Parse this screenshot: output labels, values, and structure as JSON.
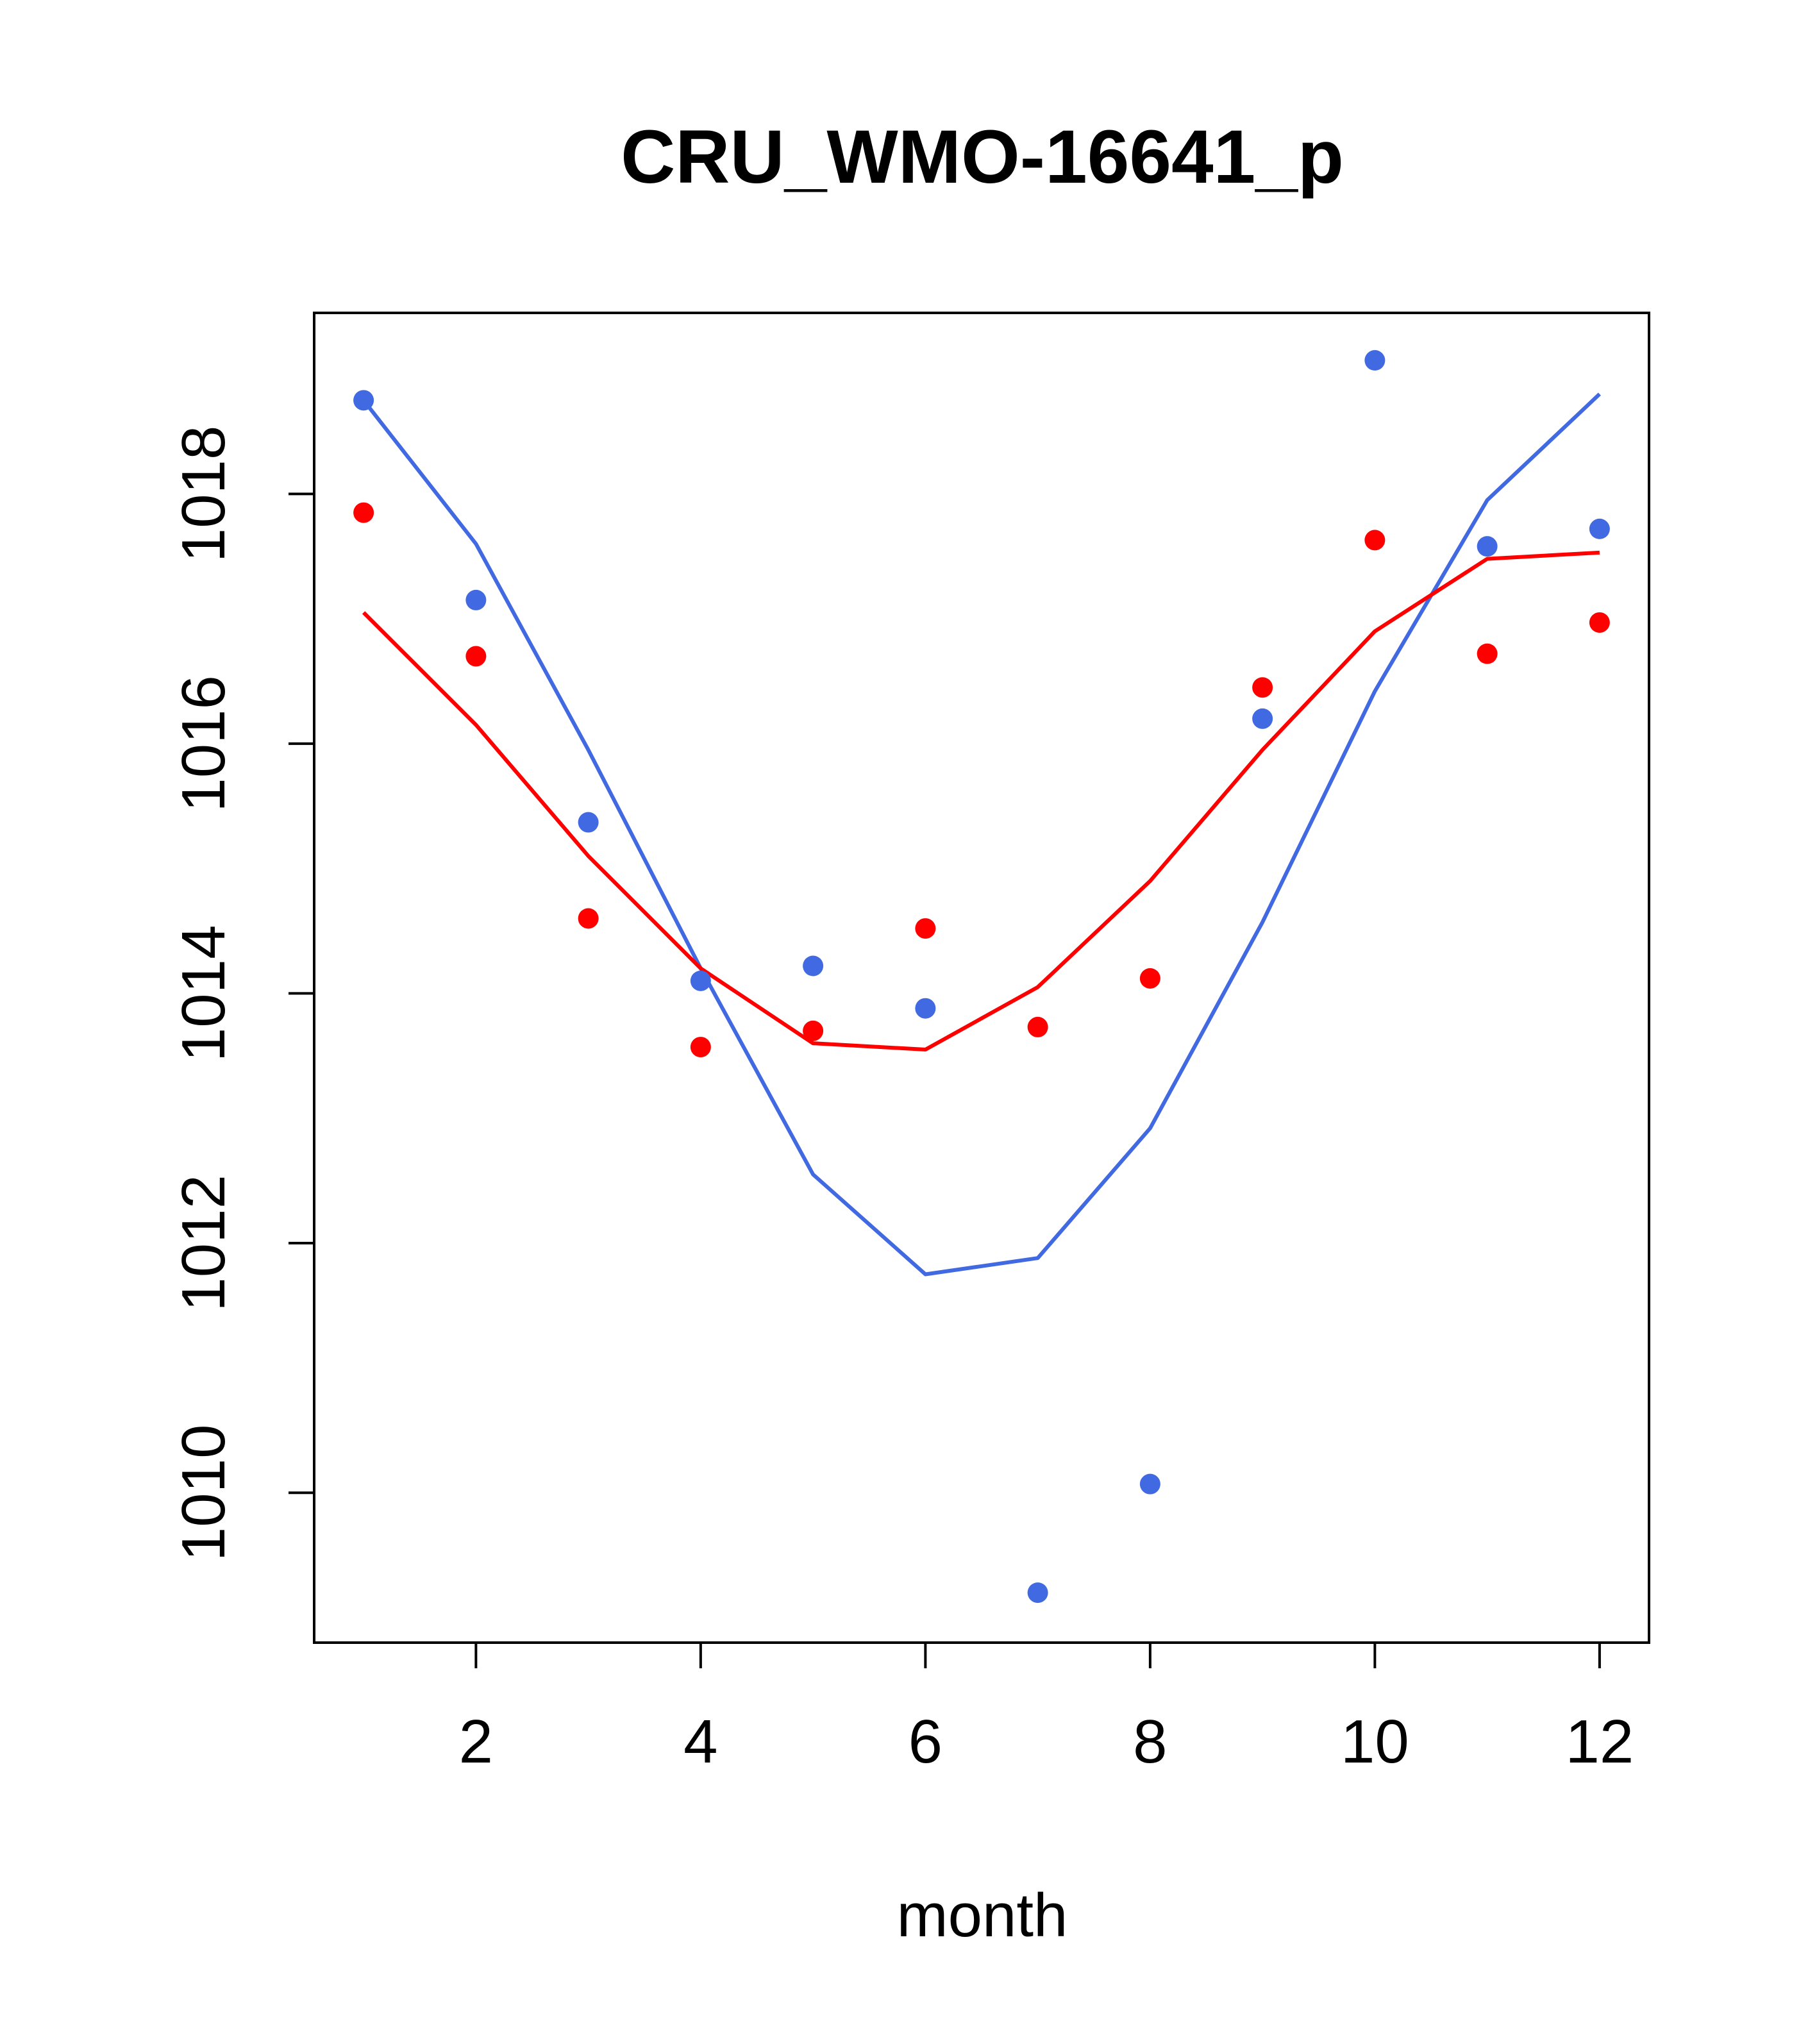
{
  "chart_data": {
    "type": "line",
    "title": "CRU_WMO-16641_p",
    "xlabel": "month",
    "ylabel": "",
    "x": [
      1,
      2,
      3,
      4,
      5,
      6,
      7,
      8,
      9,
      10,
      11,
      12
    ],
    "xticks": [
      2,
      4,
      6,
      8,
      10,
      12
    ],
    "yticks": [
      1010,
      1012,
      1014,
      1016,
      1018
    ],
    "xlim": [
      0.56,
      12.44
    ],
    "ylim": [
      1008.8,
      1019.45
    ],
    "series": [
      {
        "name": "blue-line",
        "kind": "line",
        "color": "#4169E1",
        "values": [
          1018.75,
          1017.6,
          1015.95,
          1014.2,
          1012.55,
          1011.75,
          1011.88,
          1012.92,
          1014.57,
          1016.42,
          1017.95,
          1018.8
        ]
      },
      {
        "name": "red-line",
        "kind": "line",
        "color": "#FF0000",
        "values": [
          1017.05,
          1016.15,
          1015.1,
          1014.2,
          1013.6,
          1013.55,
          1014.05,
          1014.9,
          1015.95,
          1016.9,
          1017.48,
          1017.53
        ]
      },
      {
        "name": "blue-points",
        "kind": "points",
        "color": "#4169E1",
        "values": [
          1018.75,
          1017.15,
          1015.37,
          1014.1,
          1014.22,
          1013.88,
          1009.2,
          1010.07,
          1016.2,
          1019.07,
          1017.58,
          1017.72
        ]
      },
      {
        "name": "red-points",
        "kind": "points",
        "color": "#FF0000",
        "values": [
          1017.85,
          1016.7,
          1014.6,
          1013.57,
          1013.7,
          1014.52,
          1013.73,
          1014.12,
          1016.45,
          1017.63,
          1016.72,
          1016.97
        ]
      }
    ]
  }
}
